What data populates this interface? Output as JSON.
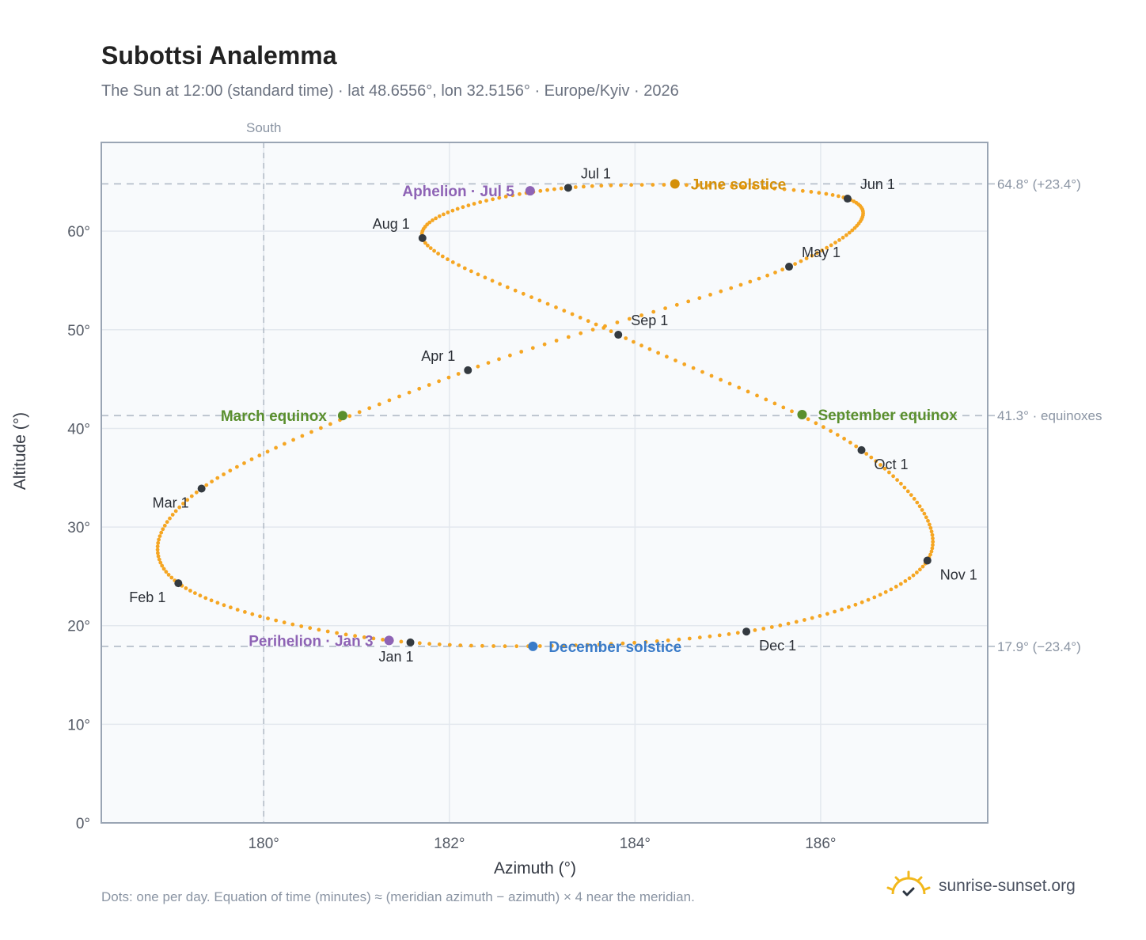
{
  "header": {
    "title": "Subottsi Analemma",
    "subtitle": "The Sun at 12:00 (standard time) · lat 48.6556°, lon 32.5156° · Europe/Kyiv · 2026"
  },
  "footer": {
    "note": "Dots: one per day. Equation of time (minutes) ≈ (meridian azimuth − azimuth) × 4 near the meridian.",
    "brand": "sunrise-sunset.org",
    "brand_icon": "sun-check-icon"
  },
  "chart_data": {
    "type": "scatter",
    "xlabel": "Azimuth (°)",
    "ylabel": "Altitude (°)",
    "xlim": [
      178.25,
      187.8
    ],
    "ylim": [
      0,
      69
    ],
    "xticks": [
      {
        "value": 180,
        "label": "180°"
      },
      {
        "value": 182,
        "label": "182°"
      },
      {
        "value": 184,
        "label": "184°"
      },
      {
        "value": 186,
        "label": "186°"
      }
    ],
    "yticks": [
      {
        "value": 0,
        "label": "0°"
      },
      {
        "value": 10,
        "label": "10°"
      },
      {
        "value": 20,
        "label": "20°"
      },
      {
        "value": 30,
        "label": "30°"
      },
      {
        "value": 40,
        "label": "40°"
      },
      {
        "value": 50,
        "label": "50°"
      },
      {
        "value": 60,
        "label": "60°"
      }
    ],
    "grid": true,
    "meridian": {
      "azimuth": 180,
      "label": "South"
    },
    "reference_lines": [
      {
        "altitude": 64.8,
        "label": "64.8° (+23.4°)"
      },
      {
        "altitude": 41.3,
        "label": "41.3° · equinoxes"
      },
      {
        "altitude": 17.9,
        "label": "17.9° (−23.4°)"
      }
    ],
    "colors": {
      "path": "#f5a623",
      "month_marker": "#343a40",
      "aphelion": "#8e63b5",
      "perihelion": "#8e63b5",
      "june_solstice": "#d4900a",
      "december_solstice": "#3a7bc8",
      "equinox": "#5a8f2e",
      "plot_bg": "#f8fafc",
      "grid": "#e3e8ee",
      "frame": "#9aa5b4"
    },
    "daily_path": {
      "description_points": "azimuth/altitude control points of the daily noon path, first day of each month",
      "control_points": [
        {
          "date": "Jan 1",
          "az": 181.58,
          "alt": 18.3
        },
        {
          "date": "Feb 1",
          "az": 179.08,
          "alt": 24.3
        },
        {
          "date": "Mar 1",
          "az": 179.33,
          "alt": 33.9
        },
        {
          "date": "Apr 1",
          "az": 182.2,
          "alt": 45.9
        },
        {
          "date": "May 1",
          "az": 185.66,
          "alt": 56.4
        },
        {
          "date": "Jun 1",
          "az": 186.29,
          "alt": 63.3
        },
        {
          "date": "Jul 1",
          "az": 183.28,
          "alt": 64.4
        },
        {
          "date": "Aug 1",
          "az": 181.71,
          "alt": 59.3
        },
        {
          "date": "Sep 1",
          "az": 183.82,
          "alt": 49.5
        },
        {
          "date": "Oct 1",
          "az": 186.44,
          "alt": 37.8
        },
        {
          "date": "Nov 1",
          "az": 187.15,
          "alt": 26.6
        },
        {
          "date": "Dec 1",
          "az": 185.2,
          "alt": 19.4
        }
      ]
    },
    "month_markers": [
      {
        "label": "Jan 1",
        "az": 181.58,
        "alt": 18.3,
        "pos": "below"
      },
      {
        "label": "Feb 1",
        "az": 179.08,
        "alt": 24.3,
        "pos": "below-left"
      },
      {
        "label": "Mar 1",
        "az": 179.33,
        "alt": 33.9,
        "pos": "below-left"
      },
      {
        "label": "Apr 1",
        "az": 182.2,
        "alt": 45.9,
        "pos": "above-left"
      },
      {
        "label": "May 1",
        "az": 185.66,
        "alt": 56.4,
        "pos": "above-right"
      },
      {
        "label": "Jun 1",
        "az": 186.29,
        "alt": 63.3,
        "pos": "above-right"
      },
      {
        "label": "Jul 1",
        "az": 183.28,
        "alt": 64.4,
        "pos": "above-right"
      },
      {
        "label": "Aug 1",
        "az": 181.71,
        "alt": 59.3,
        "pos": "above-left"
      },
      {
        "label": "Sep 1",
        "az": 183.82,
        "alt": 49.5,
        "pos": "above-right"
      },
      {
        "label": "Oct 1",
        "az": 186.44,
        "alt": 37.8,
        "pos": "below-right"
      },
      {
        "label": "Nov 1",
        "az": 187.15,
        "alt": 26.6,
        "pos": "below-right"
      },
      {
        "label": "Dec 1",
        "az": 185.2,
        "alt": 19.4,
        "pos": "below-right"
      }
    ],
    "events": [
      {
        "label": "Aphelion · Jul 5",
        "az": 182.87,
        "alt": 64.1,
        "color_key": "aphelion",
        "pos": "left"
      },
      {
        "label": "June solstice",
        "az": 184.43,
        "alt": 64.8,
        "color_key": "june_solstice",
        "pos": "right"
      },
      {
        "label": "March equinox",
        "az": 180.85,
        "alt": 41.3,
        "color_key": "equinox",
        "pos": "left"
      },
      {
        "label": "September equinox",
        "az": 185.8,
        "alt": 41.4,
        "color_key": "equinox",
        "pos": "right"
      },
      {
        "label": "Perihelion · Jan 3",
        "az": 181.35,
        "alt": 18.5,
        "color_key": "perihelion",
        "pos": "left"
      },
      {
        "label": "December solstice",
        "az": 182.9,
        "alt": 17.9,
        "color_key": "december_solstice",
        "pos": "right"
      }
    ]
  }
}
